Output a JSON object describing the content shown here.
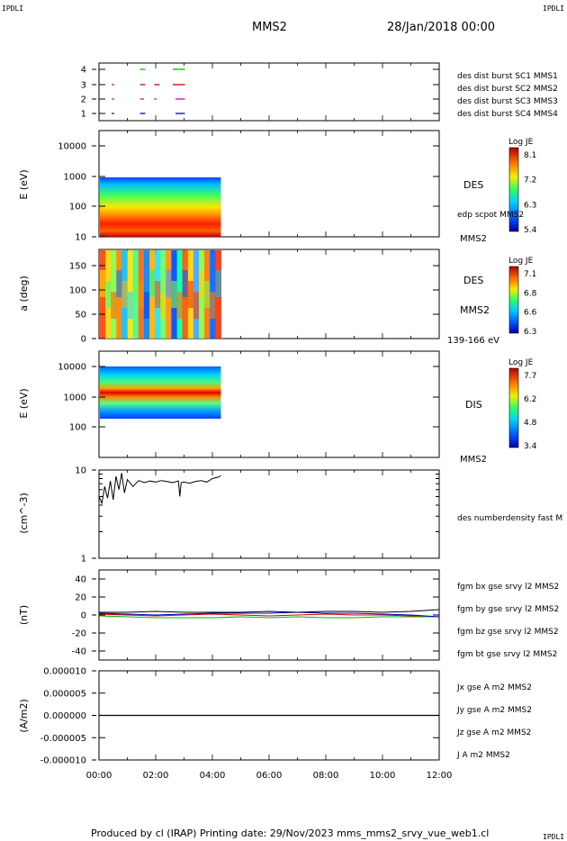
{
  "corner_labels": {
    "top_left": "IPDLI",
    "top_right": "IPDLI",
    "bottom_right": "IPDLI"
  },
  "header": {
    "title": "MMS2",
    "date": "28/Jan/2018 00:00"
  },
  "footer": {
    "text": "Produced by cl (IRAP)   Printing date: 29/Nov/2023   mms_mms2_srvy_vue_web1.cl"
  },
  "colors": {
    "mms1": "#0000cc",
    "mms2": "#cc00cc",
    "mms3": "#cc0000",
    "mms4": "#00bb00",
    "bx": "#dd0000",
    "by": "#00bb00",
    "bz": "#0000cc",
    "bt": "#000000"
  },
  "chart_data": [
    {
      "type": "scatter",
      "name": "burst-availability",
      "y_ticks": [
        "4",
        "3",
        "2",
        "1"
      ],
      "legend": [
        "des dist burst SC1 MMS1",
        "des dist burst SC2 MMS2",
        "des dist burst SC3 MMS3",
        "des dist burst SC4 MMS4"
      ],
      "segments_hours": {
        "sc1": [
          [
            0.45,
            0.5
          ],
          [
            1.45,
            1.6
          ],
          [
            2.7,
            3.0
          ]
        ],
        "sc2": [
          [
            0.45,
            0.5
          ],
          [
            1.45,
            1.55
          ],
          [
            1.95,
            2.0
          ],
          [
            2.7,
            3.0
          ]
        ],
        "sc3": [
          [
            0.45,
            0.5
          ],
          [
            1.45,
            1.6
          ],
          [
            1.95,
            2.1
          ],
          [
            2.6,
            3.0
          ]
        ],
        "sc4": [
          [
            1.45,
            1.6
          ],
          [
            2.6,
            3.0
          ]
        ]
      },
      "xlim": [
        0,
        12
      ]
    },
    {
      "type": "heatmap",
      "name": "des-energy-spectrogram",
      "ylabel": "E (eV)",
      "y_ticks": [
        "10000",
        "1000",
        "100",
        "10"
      ],
      "label": "DES",
      "sublabel": "edp scpot MMS2",
      "bottom_label": "MMS2",
      "colorbar": {
        "title": "Log JE",
        "ticks": [
          "8.1",
          "7.2",
          "6.3",
          "5.4"
        ],
        "range": [
          5.4,
          8.1
        ]
      },
      "data_extent_hours": [
        0,
        4.3
      ]
    },
    {
      "type": "heatmap",
      "name": "des-pitch-angle",
      "ylabel": "a (deg)",
      "y_ticks": [
        "150",
        "100",
        "50",
        "0"
      ],
      "label": "DES",
      "sublabel": "MMS2",
      "bottom_label": "139-166 eV",
      "colorbar": {
        "title": "Log JE",
        "ticks": [
          "7.1",
          "6.8",
          "6.6",
          "6.3"
        ],
        "range": [
          6.3,
          7.1
        ]
      },
      "data_extent_hours": [
        0,
        4.3
      ]
    },
    {
      "type": "heatmap",
      "name": "dis-energy-spectrogram",
      "ylabel": "E (eV)",
      "y_ticks": [
        "10000",
        "1000",
        "100"
      ],
      "label": "DIS",
      "bottom_label": "MMS2",
      "colorbar": {
        "title": "Log JE",
        "ticks": [
          "7.7",
          "6.2",
          "4.8",
          "3.4"
        ],
        "range": [
          3.4,
          7.7
        ]
      },
      "data_extent_hours": [
        0,
        4.3
      ]
    },
    {
      "type": "line",
      "name": "density",
      "ylabel": "(cm^-3)",
      "y_ticks": [
        "10",
        "1"
      ],
      "ylim": [
        1,
        10
      ],
      "legend": [
        "des numberdensity fast M"
      ],
      "x": [
        0.0,
        0.1,
        0.2,
        0.3,
        0.4,
        0.5,
        0.6,
        0.7,
        0.8,
        0.9,
        1.0,
        1.2,
        1.4,
        1.6,
        1.8,
        2.0,
        2.2,
        2.4,
        2.6,
        2.8,
        2.85,
        2.9,
        3.0,
        3.2,
        3.4,
        3.6,
        3.8,
        4.0,
        4.2,
        4.3
      ],
      "values": [
        5.0,
        4.2,
        6.5,
        4.8,
        7.5,
        4.6,
        8.5,
        6.0,
        9.2,
        5.5,
        7.8,
        6.5,
        7.6,
        7.2,
        7.5,
        7.3,
        7.6,
        7.4,
        7.2,
        7.5,
        5.0,
        7.2,
        7.3,
        7.1,
        7.4,
        7.6,
        7.3,
        8.0,
        8.3,
        8.6
      ]
    },
    {
      "type": "line",
      "name": "magnetic-field",
      "ylabel": "(nT)",
      "y_ticks": [
        "40",
        "20",
        "0",
        "-20",
        "-40"
      ],
      "ylim": [
        -50,
        50
      ],
      "legend": [
        "fgm bx gse srvy l2 MMS2",
        "fgm by gse srvy l2 MMS2",
        "fgm bz gse srvy l2 MMS2",
        "fgm bt gse srvy l2 MMS2"
      ],
      "x": [
        0,
        1,
        2,
        3,
        4,
        5,
        6,
        7,
        8,
        9,
        10,
        11,
        12
      ],
      "series": [
        {
          "name": "bx",
          "values": [
            1,
            0,
            -1,
            0,
            1,
            0,
            -1,
            0,
            1,
            0,
            0,
            -1,
            -2
          ]
        },
        {
          "name": "by",
          "values": [
            -1,
            -2,
            -3,
            -3,
            -3,
            -2,
            -3,
            -2,
            -3,
            -3,
            -2,
            -2,
            -2
          ]
        },
        {
          "name": "bz",
          "values": [
            2,
            1,
            0,
            1,
            2,
            2,
            2,
            3,
            2,
            2,
            1,
            0,
            -2
          ]
        },
        {
          "name": "bt",
          "values": [
            3,
            3,
            4,
            3,
            3,
            3,
            4,
            3,
            4,
            4,
            3,
            4,
            6
          ]
        }
      ]
    },
    {
      "type": "line",
      "name": "current-density",
      "ylabel": "(A/m2)",
      "y_ticks": [
        "0.000010",
        "0.000005",
        "0.000000",
        "-0.000005",
        "-0.000010"
      ],
      "ylim": [
        -1e-05,
        1e-05
      ],
      "legend": [
        "Jx gse A m2 MMS2",
        "Jy gse A m2 MMS2",
        "Jz gse A m2 MMS2",
        "J A m2 MMS2"
      ],
      "x": [
        0,
        12
      ],
      "values": [
        0,
        0
      ]
    }
  ],
  "x_axis": {
    "ticks": [
      "00:00",
      "02:00",
      "04:00",
      "06:00",
      "08:00",
      "10:00",
      "12:00"
    ],
    "xlim": [
      0,
      12
    ]
  }
}
